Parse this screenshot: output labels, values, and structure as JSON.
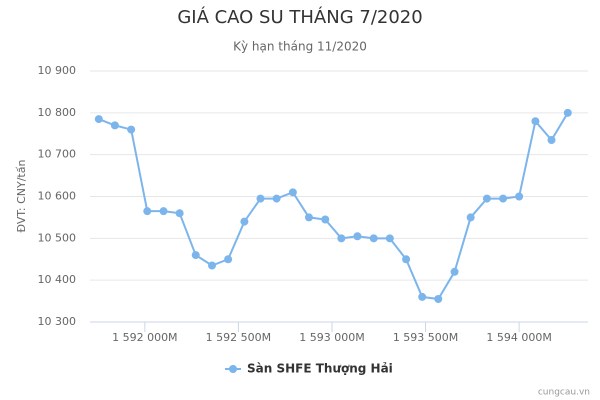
{
  "chart_data": {
    "type": "line",
    "title": "GIÁ CAO SU THÁNG 7/2020",
    "subtitle": "Kỳ hạn tháng 11/2020",
    "y_label": "ĐVT: CNY/tấn",
    "credit": "cungcau.vn",
    "x": [
      1591754,
      1591840,
      1591927,
      1592013,
      1592100,
      1592186,
      1592272,
      1592359,
      1592445,
      1592532,
      1592618,
      1592704,
      1592791,
      1592877,
      1592964,
      1593050,
      1593136,
      1593223,
      1593309,
      1593396,
      1593482,
      1593568,
      1593655,
      1593741,
      1593828,
      1593914,
      1594000,
      1594087,
      1594173,
      1594260
    ],
    "series": [
      {
        "name": "Sàn SHFE Thượng Hải",
        "color": "#7cb5ec",
        "values": [
          10785,
          10770,
          10760,
          10565,
          10565,
          10560,
          10460,
          10435,
          10450,
          10540,
          10595,
          10595,
          10610,
          10550,
          10545,
          10500,
          10505,
          10500,
          10500,
          10450,
          10360,
          10355,
          10420,
          10550,
          10595,
          10595,
          10600,
          10780,
          10735,
          10800
        ]
      }
    ],
    "xlim": [
      1591707,
      1594368
    ],
    "xticks": [
      {
        "value": 1592000,
        "label": "1 592 000M"
      },
      {
        "value": 1592500,
        "label": "1 592 500M"
      },
      {
        "value": 1593000,
        "label": "1 593 000M"
      },
      {
        "value": 1593500,
        "label": "1 593 500M"
      },
      {
        "value": 1594000,
        "label": "1 594 000M"
      }
    ],
    "ylim": [
      10300,
      10900
    ],
    "yticks": [
      {
        "value": 10300,
        "label": "10 300"
      },
      {
        "value": 10400,
        "label": "10 400"
      },
      {
        "value": 10500,
        "label": "10 500"
      },
      {
        "value": 10600,
        "label": "10 600"
      },
      {
        "value": 10700,
        "label": "10 700"
      },
      {
        "value": 10800,
        "label": "10 800"
      },
      {
        "value": 10900,
        "label": "10 900"
      }
    ],
    "grid": true
  }
}
